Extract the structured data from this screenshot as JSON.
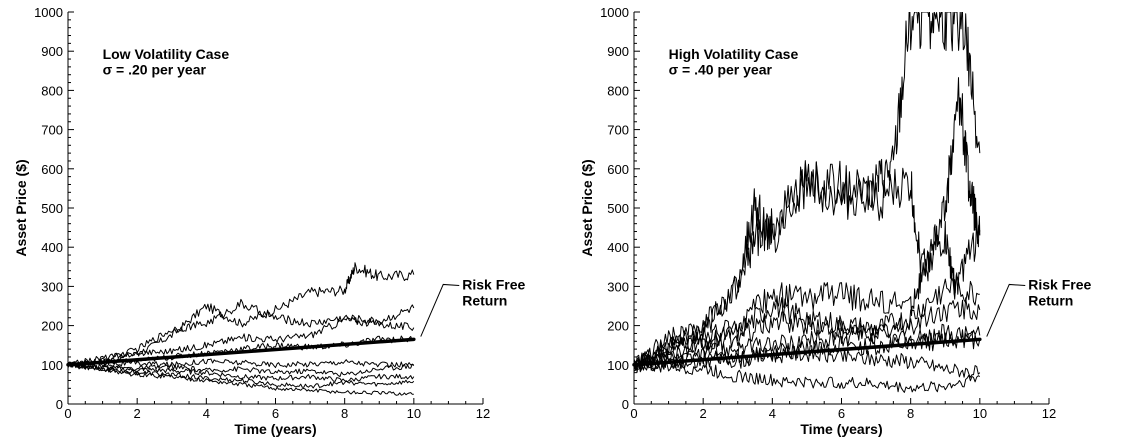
{
  "chart_data": [
    {
      "type": "line",
      "annotation": {
        "line1": "Low Volatility Case",
        "line2": "σ = .20 per year"
      },
      "xlabel": "Time (years)",
      "ylabel": "Asset Price ($)",
      "xlim": [
        0,
        12
      ],
      "ylim": [
        0,
        1000
      ],
      "xticks": [
        0,
        2,
        4,
        6,
        8,
        10,
        12
      ],
      "yticks": [
        0,
        100,
        200,
        300,
        400,
        500,
        600,
        700,
        800,
        900,
        1000
      ],
      "grid": false,
      "risk_free": {
        "label_line1": "Risk Free",
        "label_line2": "Return",
        "points": [
          [
            0,
            100
          ],
          [
            10,
            165
          ]
        ]
      },
      "series": [
        {
          "points": [
            [
              0,
              100
            ],
            [
              1,
              108
            ],
            [
              2,
              128
            ],
            [
              3,
              175
            ],
            [
              4,
              250
            ],
            [
              5,
              205
            ],
            [
              6,
              240
            ],
            [
              7,
              285
            ],
            [
              8,
              290
            ],
            [
              8.3,
              350
            ],
            [
              9,
              325
            ],
            [
              10,
              330
            ]
          ]
        },
        {
          "points": [
            [
              0,
              100
            ],
            [
              1,
              110
            ],
            [
              2,
              140
            ],
            [
              3,
              190
            ],
            [
              4,
              205
            ],
            [
              5,
              255
            ],
            [
              6,
              220
            ],
            [
              7,
              205
            ],
            [
              8,
              220
            ],
            [
              9,
              210
            ],
            [
              10,
              245
            ]
          ]
        },
        {
          "points": [
            [
              0,
              100
            ],
            [
              1,
              118
            ],
            [
              2,
              130
            ],
            [
              3,
              135
            ],
            [
              4,
              150
            ],
            [
              5,
              170
            ],
            [
              6,
              165
            ],
            [
              7,
              175
            ],
            [
              8,
              215
            ],
            [
              9,
              205
            ],
            [
              10,
              195
            ]
          ]
        },
        {
          "points": [
            [
              0,
              100
            ],
            [
              1,
              105
            ],
            [
              2,
              110
            ],
            [
              3,
              120
            ],
            [
              4,
              130
            ],
            [
              5,
              140
            ],
            [
              6,
              150
            ],
            [
              7,
              145
            ],
            [
              8,
              150
            ],
            [
              9,
              165
            ],
            [
              10,
              165
            ]
          ]
        },
        {
          "points": [
            [
              0,
              100
            ],
            [
              1,
              102
            ],
            [
              2,
              104
            ],
            [
              3,
              100
            ],
            [
              4,
              110
            ],
            [
              5,
              105
            ],
            [
              6,
              100
            ],
            [
              7,
              102
            ],
            [
              8,
              108
            ],
            [
              9,
              100
            ],
            [
              10,
              100
            ]
          ]
        },
        {
          "points": [
            [
              0,
              100
            ],
            [
              1,
              95
            ],
            [
              2,
              90
            ],
            [
              3,
              95
            ],
            [
              4,
              85
            ],
            [
              5,
              90
            ],
            [
              6,
              80
            ],
            [
              7,
              85
            ],
            [
              8,
              75
            ],
            [
              9,
              90
            ],
            [
              10,
              98
            ]
          ]
        },
        {
          "points": [
            [
              0,
              100
            ],
            [
              1,
              92
            ],
            [
              2,
              88
            ],
            [
              3,
              85
            ],
            [
              4,
              80
            ],
            [
              5,
              70
            ],
            [
              6,
              65
            ],
            [
              7,
              70
            ],
            [
              8,
              60
            ],
            [
              9,
              70
            ],
            [
              10,
              70
            ]
          ]
        },
        {
          "points": [
            [
              0,
              100
            ],
            [
              1,
              90
            ],
            [
              2,
              80
            ],
            [
              3,
              75
            ],
            [
              4,
              65
            ],
            [
              5,
              60
            ],
            [
              6,
              50
            ],
            [
              7,
              45
            ],
            [
              8,
              55
            ],
            [
              9,
              50
            ],
            [
              10,
              58
            ]
          ]
        },
        {
          "points": [
            [
              0,
              100
            ],
            [
              1,
              88
            ],
            [
              2,
              75
            ],
            [
              3,
              70
            ],
            [
              4,
              60
            ],
            [
              5,
              50
            ],
            [
              6,
              40
            ],
            [
              7,
              35
            ],
            [
              8,
              30
            ],
            [
              9,
              28
            ],
            [
              10,
              25
            ]
          ]
        }
      ]
    },
    {
      "type": "line",
      "annotation": {
        "line1": "High Volatility Case",
        "line2": "σ = .40 per year"
      },
      "xlabel": "Time (years)",
      "ylabel": "Asset Price ($)",
      "xlim": [
        0,
        12
      ],
      "ylim": [
        0,
        1000
      ],
      "xticks": [
        0,
        2,
        4,
        6,
        8,
        10,
        12
      ],
      "yticks": [
        0,
        100,
        200,
        300,
        400,
        500,
        600,
        700,
        800,
        900,
        1000
      ],
      "grid": false,
      "risk_free": {
        "label_line1": "Risk Free",
        "label_line2": "Return",
        "points": [
          [
            0,
            100
          ],
          [
            10,
            165
          ]
        ]
      },
      "series": [
        {
          "points": [
            [
              0,
              100
            ],
            [
              1,
              150
            ],
            [
              2,
              200
            ],
            [
              3,
              300
            ],
            [
              3.5,
              420
            ],
            [
              4,
              450
            ],
            [
              5,
              580
            ],
            [
              6,
              510
            ],
            [
              7,
              560
            ],
            [
              7.5,
              600
            ],
            [
              8,
              1000
            ],
            [
              8.5,
              1000
            ],
            [
              9,
              990
            ],
            [
              9.5,
              1000
            ],
            [
              10,
              640
            ]
          ]
        },
        {
          "points": [
            [
              0,
              100
            ],
            [
              1,
              170
            ],
            [
              2,
              180
            ],
            [
              3,
              310
            ],
            [
              3.5,
              510
            ],
            [
              4,
              420
            ],
            [
              5,
              570
            ],
            [
              6,
              560
            ],
            [
              7,
              520
            ],
            [
              8,
              560
            ],
            [
              8.3,
              350
            ],
            [
              9,
              420
            ],
            [
              9.3,
              300
            ],
            [
              10,
              440
            ]
          ]
        },
        {
          "points": [
            [
              0,
              100
            ],
            [
              1,
              150
            ],
            [
              2,
              170
            ],
            [
              3,
              200
            ],
            [
              4,
              280
            ],
            [
              5,
              270
            ],
            [
              6,
              280
            ],
            [
              7,
              260
            ],
            [
              8,
              250
            ],
            [
              8.5,
              350
            ],
            [
              9,
              500
            ],
            [
              9.4,
              800
            ],
            [
              9.7,
              550
            ],
            [
              10,
              430
            ]
          ]
        },
        {
          "points": [
            [
              0,
              100
            ],
            [
              1,
              140
            ],
            [
              2,
              160
            ],
            [
              3,
              180
            ],
            [
              4,
              250
            ],
            [
              5,
              220
            ],
            [
              6,
              200
            ],
            [
              7,
              190
            ],
            [
              8,
              220
            ],
            [
              9,
              300
            ],
            [
              10,
              280
            ]
          ]
        },
        {
          "points": [
            [
              0,
              100
            ],
            [
              1,
              120
            ],
            [
              2,
              150
            ],
            [
              3,
              170
            ],
            [
              4,
              210
            ],
            [
              5,
              200
            ],
            [
              6,
              190
            ],
            [
              7,
              180
            ],
            [
              8,
              200
            ],
            [
              9,
              240
            ],
            [
              10,
              240
            ]
          ]
        },
        {
          "points": [
            [
              0,
              100
            ],
            [
              1,
              110
            ],
            [
              2,
              130
            ],
            [
              3,
              145
            ],
            [
              4,
              150
            ],
            [
              5,
              160
            ],
            [
              6,
              170
            ],
            [
              7,
              175
            ],
            [
              8,
              160
            ],
            [
              9,
              180
            ],
            [
              10,
              175
            ]
          ]
        },
        {
          "points": [
            [
              0,
              100
            ],
            [
              1,
              105
            ],
            [
              2,
              110
            ],
            [
              3,
              120
            ],
            [
              4,
              130
            ],
            [
              5,
              140
            ],
            [
              6,
              150
            ],
            [
              7,
              145
            ],
            [
              8,
              150
            ],
            [
              9,
              165
            ],
            [
              10,
              165
            ]
          ]
        },
        {
          "points": [
            [
              0,
              100
            ],
            [
              1,
              115
            ],
            [
              2,
              120
            ],
            [
              3,
              110
            ],
            [
              4,
              125
            ],
            [
              5,
              130
            ],
            [
              6,
              120
            ],
            [
              7,
              115
            ],
            [
              8,
              110
            ],
            [
              9,
              90
            ],
            [
              10,
              80
            ]
          ]
        },
        {
          "points": [
            [
              0,
              100
            ],
            [
              1,
              95
            ],
            [
              2,
              90
            ],
            [
              3,
              70
            ],
            [
              4,
              60
            ],
            [
              5,
              55
            ],
            [
              6,
              55
            ],
            [
              7,
              50
            ],
            [
              8,
              40
            ],
            [
              9,
              45
            ],
            [
              10,
              70
            ]
          ]
        }
      ]
    }
  ]
}
